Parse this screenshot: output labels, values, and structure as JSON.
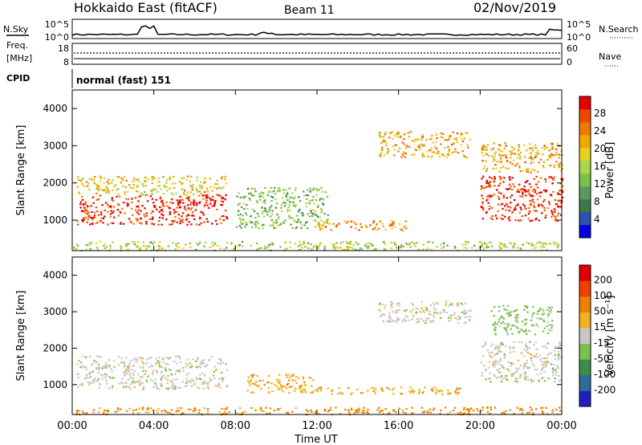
{
  "header": {
    "station": "Hokkaido East (fitACF)",
    "beam": "Beam 11",
    "date": "02/Nov/2019"
  },
  "top_panels": {
    "nsky_label": "N.Sky",
    "nsearch_label": "N.Search",
    "noise_ticks_left": [
      "10^5",
      "10^0"
    ],
    "noise_ticks_right": [
      "10^5",
      "10^0"
    ],
    "freq_label_1": "Freq.",
    "freq_label_2": "[MHz]",
    "freq_ticks": [
      "18",
      "8"
    ],
    "nave_label": "Nave",
    "nave_ticks": [
      "60",
      "0"
    ],
    "cpid_label": "CPID",
    "cpid_text": "normal (fast) 151"
  },
  "chart_data": [
    {
      "type": "heatmap",
      "name": "power",
      "xlabel": "Time UT",
      "ylabel": "Slant Range [km]",
      "xlim": [
        0,
        24
      ],
      "ylim": [
        180,
        4500
      ],
      "yticks": [
        "4000",
        "3000",
        "2000",
        "1000"
      ],
      "colorbar_label": "Power [dB]",
      "colorbar_ticks": [
        "28",
        "24",
        "20",
        "16",
        "12",
        "8",
        "4"
      ],
      "colorbar_colors": [
        "#0000e6",
        "#2a52b0",
        "#3a7a4a",
        "#5a9a60",
        "#7abf4a",
        "#a8d84a",
        "#e8d020",
        "#f0a800",
        "#f07800",
        "#f04800",
        "#e80000"
      ],
      "regions": [
        {
          "t0": 0.2,
          "t1": 7.6,
          "r0": 900,
          "r1": 1700,
          "level": 0.95,
          "desc": "strong near-range"
        },
        {
          "t0": 0.2,
          "t1": 7.6,
          "r0": 1700,
          "r1": 2200,
          "level": 0.6,
          "desc": "edge"
        },
        {
          "t0": 8.0,
          "t1": 12.5,
          "r0": 800,
          "r1": 1900,
          "level": 0.4,
          "desc": "weak bands"
        },
        {
          "t0": 12.0,
          "t1": 16.5,
          "r0": 750,
          "r1": 1000,
          "level": 0.75,
          "desc": "band"
        },
        {
          "t0": 15.0,
          "t1": 19.5,
          "r0": 2700,
          "r1": 3400,
          "level": 0.7,
          "desc": "far range"
        },
        {
          "t0": 20.0,
          "t1": 24.0,
          "r0": 1000,
          "r1": 2200,
          "level": 0.95,
          "desc": "evening strong"
        },
        {
          "t0": 20.0,
          "t1": 24.0,
          "r0": 2300,
          "r1": 3100,
          "level": 0.7,
          "desc": "evening far"
        },
        {
          "t0": 0.0,
          "t1": 24.0,
          "r0": 200,
          "r1": 450,
          "level": 0.5,
          "desc": "ground clutter"
        }
      ]
    },
    {
      "type": "heatmap",
      "name": "velocity",
      "xlabel": "Time UT",
      "ylabel": "Slant Range [km]",
      "xlim": [
        0,
        24
      ],
      "ylim": [
        180,
        4500
      ],
      "xticks": [
        "00:00",
        "04:00",
        "08:00",
        "12:00",
        "16:00",
        "20:00",
        "00:00"
      ],
      "yticks": [
        "4000",
        "3000",
        "2000",
        "1000"
      ],
      "colorbar_label": "Velocity [m s⁻¹]",
      "colorbar_ticks": [
        "200",
        "100",
        "50",
        "15",
        "-15",
        "-50",
        "-100",
        "-200"
      ],
      "colorbar_colors": [
        "#2020c0",
        "#2e6a9a",
        "#3c8c4a",
        "#7cc050",
        "#c8c8c8",
        "#f0b020",
        "#f08000",
        "#f04000",
        "#e00000"
      ],
      "regions": [
        {
          "t0": 0.2,
          "t1": 7.6,
          "r0": 900,
          "r1": 1800,
          "vel": 0,
          "desc": "ground scatter grey"
        },
        {
          "t0": 8.5,
          "t1": 12.0,
          "r0": 800,
          "r1": 1300,
          "vel": -40,
          "desc": "negative band"
        },
        {
          "t0": 12.0,
          "t1": 19.0,
          "r0": 750,
          "r1": 950,
          "vel": -40,
          "desc": "negative band"
        },
        {
          "t0": 15.0,
          "t1": 19.5,
          "r0": 2700,
          "r1": 3300,
          "vel": 0,
          "desc": "far grey"
        },
        {
          "t0": 20.0,
          "t1": 24.0,
          "r0": 1100,
          "r1": 2200,
          "vel": 0,
          "desc": "evening grey"
        },
        {
          "t0": 20.5,
          "t1": 23.5,
          "r0": 2400,
          "r1": 3200,
          "vel": 30,
          "desc": "evening positive"
        },
        {
          "t0": 0.0,
          "t1": 24.0,
          "r0": 200,
          "r1": 400,
          "vel": -60,
          "desc": "near range"
        }
      ]
    }
  ]
}
